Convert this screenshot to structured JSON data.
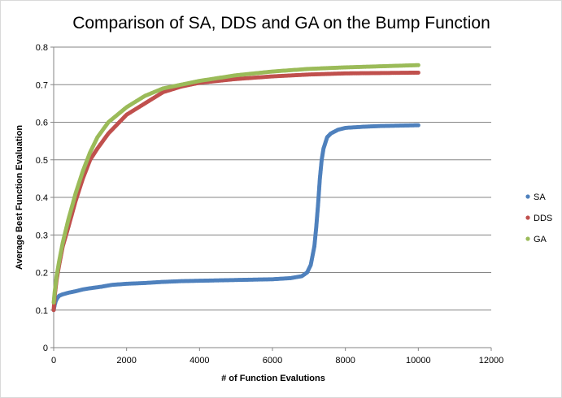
{
  "chart_data": {
    "type": "scatter",
    "title": "Comparison of SA, DDS and GA on the Bump Function",
    "xlabel": "# of Function Evalutions",
    "ylabel": "Average Best Function Evaluation",
    "xlim": [
      0,
      12000
    ],
    "ylim": [
      0,
      0.8
    ],
    "xticks": [
      0,
      2000,
      4000,
      6000,
      8000,
      10000,
      12000
    ],
    "yticks": [
      0,
      0.1,
      0.2,
      0.3,
      0.4,
      0.5,
      0.6,
      0.7,
      0.8
    ],
    "xtick_labels": [
      "0",
      "2000",
      "4000",
      "6000",
      "8000",
      "10000",
      "12000"
    ],
    "ytick_labels": [
      "0",
      "0.1",
      "0.2",
      "0.3",
      "0.4",
      "0.5",
      "0.6",
      "0.7",
      "0.8"
    ],
    "grid": "horizontal",
    "legend_position": "right",
    "series": [
      {
        "name": "SA",
        "color": "#4f81bd",
        "points": [
          [
            0,
            0.1
          ],
          [
            30,
            0.115
          ],
          [
            60,
            0.125
          ],
          [
            100,
            0.132
          ],
          [
            150,
            0.138
          ],
          [
            250,
            0.142
          ],
          [
            400,
            0.146
          ],
          [
            600,
            0.15
          ],
          [
            800,
            0.155
          ],
          [
            1000,
            0.158
          ],
          [
            1300,
            0.162
          ],
          [
            1600,
            0.167
          ],
          [
            2000,
            0.17
          ],
          [
            2500,
            0.172
          ],
          [
            3000,
            0.175
          ],
          [
            3500,
            0.177
          ],
          [
            4000,
            0.178
          ],
          [
            5000,
            0.18
          ],
          [
            6000,
            0.182
          ],
          [
            6500,
            0.185
          ],
          [
            6800,
            0.19
          ],
          [
            6950,
            0.2
          ],
          [
            7050,
            0.22
          ],
          [
            7150,
            0.27
          ],
          [
            7200,
            0.32
          ],
          [
            7250,
            0.38
          ],
          [
            7300,
            0.45
          ],
          [
            7350,
            0.5
          ],
          [
            7400,
            0.53
          ],
          [
            7500,
            0.56
          ],
          [
            7600,
            0.57
          ],
          [
            7800,
            0.58
          ],
          [
            8000,
            0.585
          ],
          [
            8500,
            0.588
          ],
          [
            9000,
            0.59
          ],
          [
            9500,
            0.591
          ],
          [
            10000,
            0.592
          ]
        ]
      },
      {
        "name": "DDS",
        "color": "#c0504d",
        "points": [
          [
            0,
            0.1
          ],
          [
            30,
            0.14
          ],
          [
            80,
            0.18
          ],
          [
            150,
            0.22
          ],
          [
            250,
            0.27
          ],
          [
            400,
            0.32
          ],
          [
            600,
            0.39
          ],
          [
            800,
            0.45
          ],
          [
            1000,
            0.5
          ],
          [
            1200,
            0.53
          ],
          [
            1500,
            0.57
          ],
          [
            2000,
            0.62
          ],
          [
            2500,
            0.65
          ],
          [
            3000,
            0.68
          ],
          [
            3500,
            0.695
          ],
          [
            4000,
            0.705
          ],
          [
            5000,
            0.715
          ],
          [
            6000,
            0.722
          ],
          [
            7000,
            0.727
          ],
          [
            8000,
            0.73
          ],
          [
            9000,
            0.731
          ],
          [
            10000,
            0.732
          ]
        ]
      },
      {
        "name": "GA",
        "color": "#9bbb59",
        "points": [
          [
            0,
            0.12
          ],
          [
            30,
            0.15
          ],
          [
            80,
            0.19
          ],
          [
            150,
            0.23
          ],
          [
            250,
            0.28
          ],
          [
            400,
            0.34
          ],
          [
            600,
            0.41
          ],
          [
            800,
            0.47
          ],
          [
            1000,
            0.52
          ],
          [
            1200,
            0.56
          ],
          [
            1500,
            0.6
          ],
          [
            2000,
            0.64
          ],
          [
            2500,
            0.67
          ],
          [
            3000,
            0.69
          ],
          [
            3500,
            0.7
          ],
          [
            4000,
            0.71
          ],
          [
            5000,
            0.725
          ],
          [
            6000,
            0.735
          ],
          [
            7000,
            0.742
          ],
          [
            8000,
            0.746
          ],
          [
            9000,
            0.749
          ],
          [
            10000,
            0.752
          ]
        ]
      }
    ]
  }
}
